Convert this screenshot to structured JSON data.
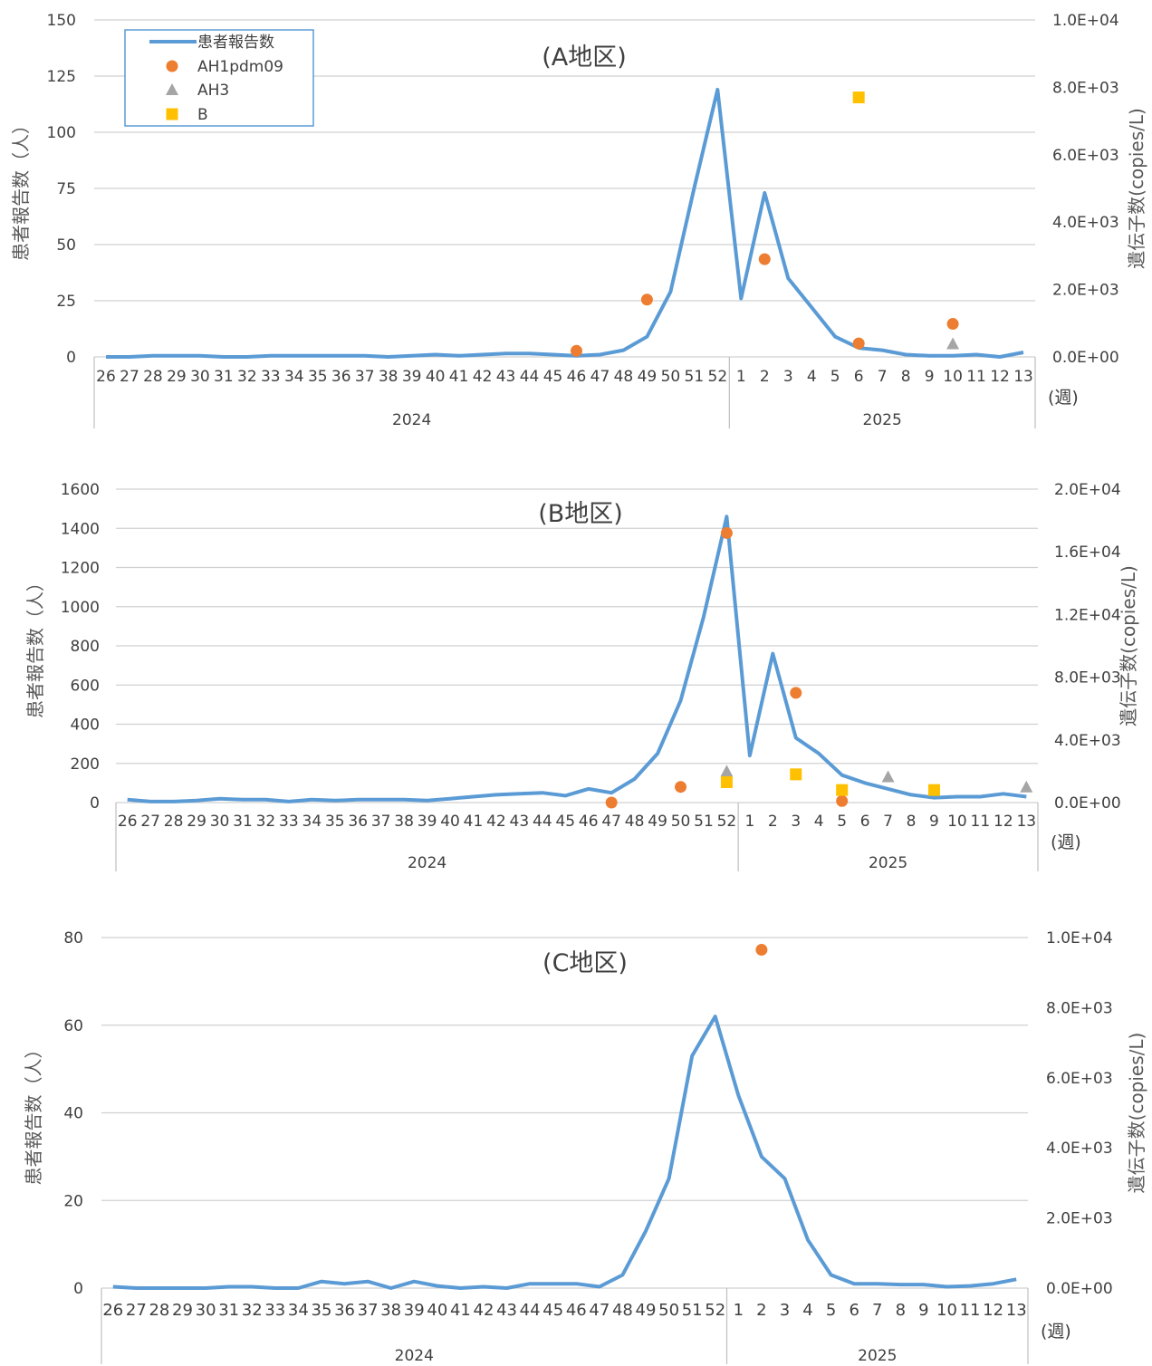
{
  "legend": {
    "series": [
      "患者報告数",
      "AH1pdm09",
      "AH3",
      "B"
    ],
    "colors": {
      "line": "#5b9bd5",
      "AH1pdm09": "#ed7d31",
      "AH3": "#a5a5a5",
      "B": "#ffc000"
    }
  },
  "x_unit_label": "(週)",
  "chart_data": [
    {
      "type": "line",
      "title": "(A地区)",
      "ylabel": "患者報告数（人）",
      "y2label": "遺伝子数(copies/L)",
      "categories": [
        "26",
        "27",
        "28",
        "29",
        "30",
        "31",
        "32",
        "33",
        "34",
        "35",
        "36",
        "37",
        "38",
        "39",
        "40",
        "41",
        "42",
        "43",
        "44",
        "45",
        "46",
        "47",
        "48",
        "49",
        "50",
        "51",
        "52",
        "1",
        "2",
        "3",
        "4",
        "5",
        "6",
        "7",
        "8",
        "9",
        "10",
        "11",
        "12",
        "13"
      ],
      "year_groups": [
        {
          "label": "2024",
          "count": 27
        },
        {
          "label": "2025",
          "count": 13
        }
      ],
      "ylim": [
        0,
        150
      ],
      "yticks": [
        "0",
        "25",
        "50",
        "75",
        "100",
        "125",
        "150"
      ],
      "y2lim": [
        0,
        10000
      ],
      "y2ticks": [
        "0.0E+00",
        "2.0E+03",
        "4.0E+03",
        "6.0E+03",
        "8.0E+03",
        "1.0E+04"
      ],
      "series": [
        {
          "name": "患者報告数",
          "kind": "line",
          "axis": "left",
          "values": [
            0,
            0,
            0.5,
            0.5,
            0.5,
            0,
            0,
            0.5,
            0.5,
            0.5,
            0.5,
            0.5,
            0,
            0.5,
            1,
            0.5,
            1,
            1.5,
            1.5,
            1,
            0.5,
            1,
            3,
            9,
            29,
            75,
            119,
            26,
            73,
            35,
            22,
            9,
            4,
            3,
            1,
            0.5,
            0.5,
            1,
            0,
            2
          ]
        },
        {
          "name": "AH1pdm09",
          "kind": "scatter",
          "axis": "right",
          "points": [
            {
              "x": "46",
              "y": 180
            },
            {
              "x": "49",
              "y": 1700
            },
            {
              "x": "2",
              "y": 2900
            },
            {
              "x": "6",
              "y": 400
            },
            {
              "x": "10",
              "y": 980
            }
          ]
        },
        {
          "name": "AH3",
          "kind": "scatter",
          "axis": "right",
          "points": [
            {
              "x": "10",
              "y": 390
            }
          ]
        },
        {
          "name": "B",
          "kind": "scatter",
          "axis": "right",
          "points": [
            {
              "x": "6",
              "y": 7700
            }
          ]
        }
      ],
      "legend_position": "top-left",
      "grid": true
    },
    {
      "type": "line",
      "title": "(B地区)",
      "ylabel": "患者報告数（人）",
      "y2label": "遺伝子数(copies/L)",
      "categories": [
        "26",
        "27",
        "28",
        "29",
        "30",
        "31",
        "32",
        "33",
        "34",
        "35",
        "36",
        "37",
        "38",
        "39",
        "40",
        "41",
        "42",
        "43",
        "44",
        "45",
        "46",
        "47",
        "48",
        "49",
        "50",
        "51",
        "52",
        "1",
        "2",
        "3",
        "4",
        "5",
        "6",
        "7",
        "8",
        "9",
        "10",
        "11",
        "12",
        "13"
      ],
      "year_groups": [
        {
          "label": "2024",
          "count": 27
        },
        {
          "label": "2025",
          "count": 13
        }
      ],
      "ylim": [
        0,
        1600
      ],
      "yticks": [
        "0",
        "200",
        "400",
        "600",
        "800",
        "1000",
        "1200",
        "1400",
        "1600"
      ],
      "y2lim": [
        0,
        20000
      ],
      "y2ticks": [
        "0.0E+00",
        "4.0E+03",
        "8.0E+03",
        "1.2E+04",
        "1.6E+04",
        "2.0E+04"
      ],
      "series": [
        {
          "name": "患者報告数",
          "kind": "line",
          "axis": "left",
          "values": [
            15,
            5,
            5,
            10,
            20,
            15,
            15,
            5,
            15,
            10,
            15,
            15,
            15,
            10,
            20,
            30,
            40,
            45,
            50,
            35,
            70,
            50,
            120,
            250,
            520,
            950,
            1460,
            240,
            760,
            330,
            250,
            140,
            100,
            70,
            40,
            25,
            30,
            30,
            45,
            30
          ]
        },
        {
          "name": "AH1pdm09",
          "kind": "scatter",
          "axis": "right",
          "points": [
            {
              "x": "47",
              "y": 0
            },
            {
              "x": "50",
              "y": 1000
            },
            {
              "x": "52",
              "y": 17200
            },
            {
              "x": "3",
              "y": 7000
            },
            {
              "x": "5",
              "y": 100
            }
          ]
        },
        {
          "name": "AH3",
          "kind": "scatter",
          "axis": "right",
          "points": [
            {
              "x": "52",
              "y": 2000
            },
            {
              "x": "7",
              "y": 1650
            },
            {
              "x": "13",
              "y": 1000
            }
          ]
        },
        {
          "name": "B",
          "kind": "scatter",
          "axis": "right",
          "points": [
            {
              "x": "52",
              "y": 1300
            },
            {
              "x": "3",
              "y": 1800
            },
            {
              "x": "5",
              "y": 800
            },
            {
              "x": "9",
              "y": 800
            }
          ]
        }
      ],
      "grid": true
    },
    {
      "type": "line",
      "title": "(C地区)",
      "ylabel": "患者報告数（人）",
      "y2label": "遺伝子数(copies/L)",
      "categories": [
        "26",
        "27",
        "28",
        "29",
        "30",
        "31",
        "32",
        "33",
        "34",
        "35",
        "36",
        "37",
        "38",
        "39",
        "40",
        "41",
        "42",
        "43",
        "44",
        "45",
        "46",
        "47",
        "48",
        "49",
        "50",
        "51",
        "52",
        "1",
        "2",
        "3",
        "4",
        "5",
        "6",
        "7",
        "8",
        "9",
        "10",
        "11",
        "12",
        "13"
      ],
      "year_groups": [
        {
          "label": "2024",
          "count": 27
        },
        {
          "label": "2025",
          "count": 13
        }
      ],
      "ylim": [
        0,
        80
      ],
      "yticks": [
        "0",
        "20",
        "40",
        "60",
        "80"
      ],
      "y2lim": [
        0,
        10000
      ],
      "y2ticks": [
        "0.0E+00",
        "2.0E+03",
        "4.0E+03",
        "6.0E+03",
        "8.0E+03",
        "1.0E+04"
      ],
      "series": [
        {
          "name": "患者報告数",
          "kind": "line",
          "axis": "left",
          "values": [
            0.3,
            0,
            0,
            0,
            0,
            0.3,
            0.3,
            0,
            0,
            1.5,
            1,
            1.5,
            0,
            1.5,
            0.5,
            0,
            0.3,
            0,
            1,
            1,
            1,
            0.3,
            3,
            13,
            25,
            53,
            62,
            44,
            30,
            25,
            11,
            3,
            1,
            1,
            0.8,
            0.8,
            0.3,
            0.5,
            1,
            2
          ]
        },
        {
          "name": "AH1pdm09",
          "kind": "scatter",
          "axis": "right",
          "points": [
            {
              "x": "2",
              "y": 9650
            }
          ]
        }
      ],
      "grid": true
    }
  ]
}
